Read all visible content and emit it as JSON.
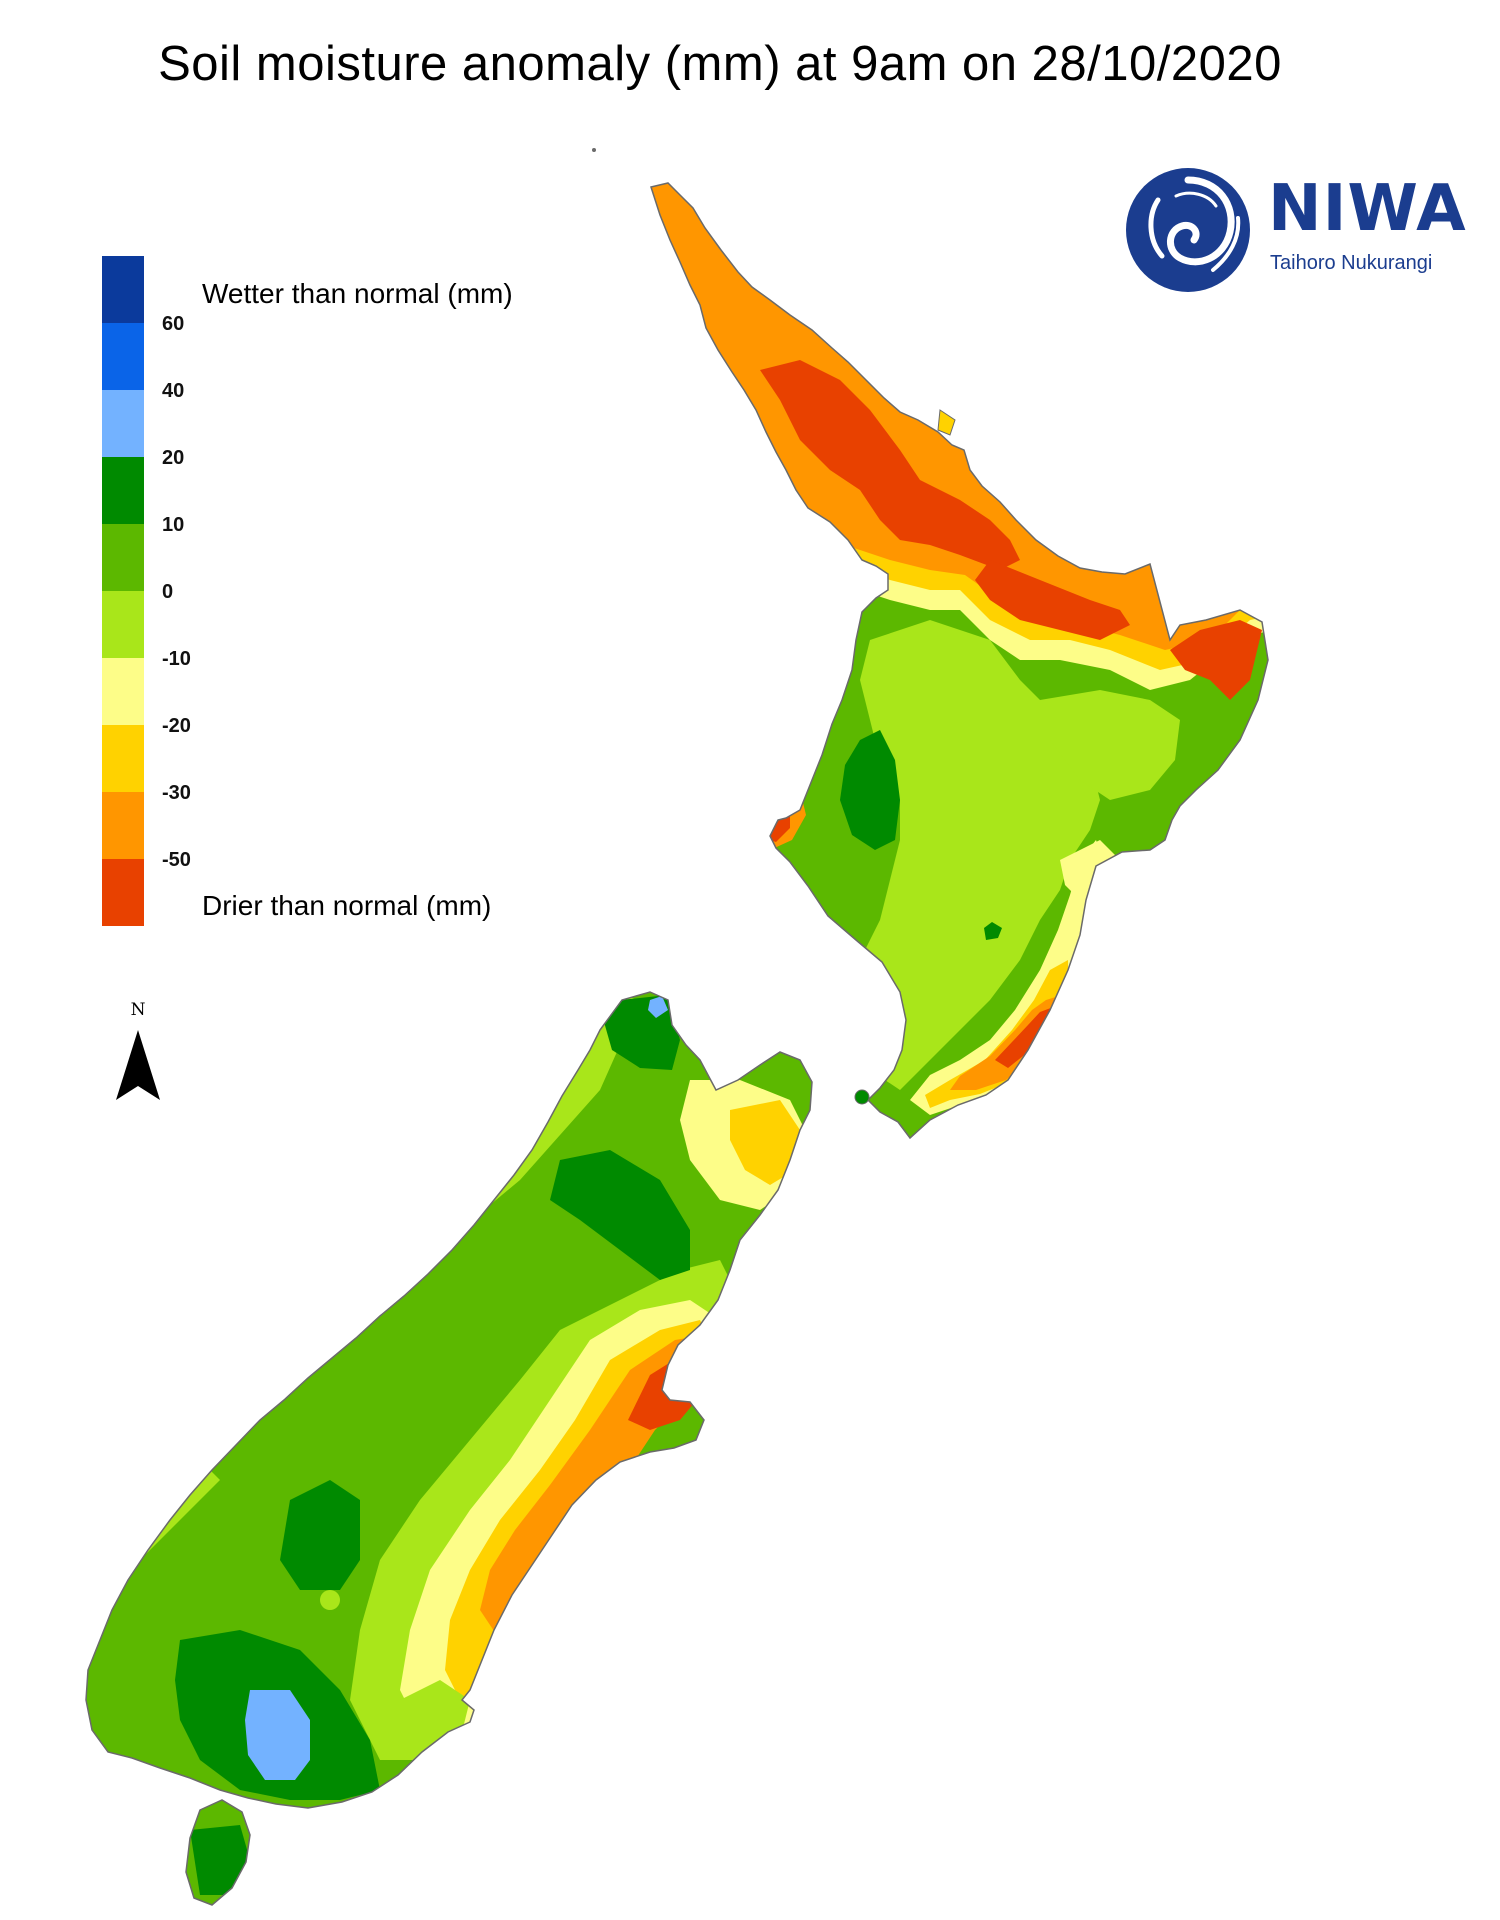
{
  "title": "Soil moisture anomaly (mm) at 9am on 28/10/2020",
  "legend": {
    "wetter_label": "Wetter than normal (mm)",
    "drier_label": "Drier than normal (mm)",
    "ticks": [
      "60",
      "40",
      "20",
      "10",
      "0",
      "-10",
      "-20",
      "-30",
      "-50"
    ],
    "colors": [
      "#0b3a9c",
      "#0a64e8",
      "#73b2ff",
      "#008a00",
      "#5cb800",
      "#a9e61a",
      "#fdfd88",
      "#ffd200",
      "#ff9600",
      "#e84100"
    ],
    "color_meaning": [
      "> 60 wetter",
      "40 to 60",
      "20 to 40",
      "10 to 20",
      "0 to 10",
      "-10 to 0",
      "-20 to -10",
      "-30 to -20",
      "-50 to -30",
      "< -50 drier"
    ]
  },
  "north_arrow": {
    "label": "N",
    "icon": "north-arrow-icon"
  },
  "logo": {
    "name": "NIWA",
    "subtitle": "Taihoro Nukurangi",
    "color": "#1b3d8f"
  }
}
